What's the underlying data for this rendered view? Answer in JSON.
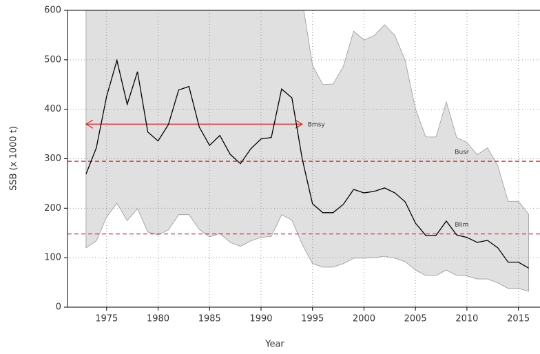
{
  "chart_data": {
    "type": "line",
    "xlabel": "Year",
    "ylabel": "SSB (x 1000 t)",
    "x": [
      1973,
      1974,
      1975,
      1976,
      1977,
      1978,
      1979,
      1980,
      1981,
      1982,
      1983,
      1984,
      1985,
      1986,
      1987,
      1988,
      1989,
      1990,
      1991,
      1992,
      1993,
      1994,
      1995,
      1996,
      1997,
      1998,
      1999,
      2000,
      2001,
      2002,
      2003,
      2004,
      2005,
      2006,
      2007,
      2008,
      2009,
      2010,
      2011,
      2012,
      2013,
      2014,
      2015,
      2016
    ],
    "values": [
      269,
      322,
      426,
      499,
      410,
      476,
      354,
      336,
      369,
      439,
      446,
      364,
      327,
      347,
      309,
      290,
      320,
      340,
      343,
      441,
      423,
      300,
      209,
      191,
      191,
      208,
      238,
      231,
      234,
      241,
      231,
      213,
      170,
      145,
      145,
      174,
      146,
      141,
      131,
      135,
      120,
      91,
      91,
      79
    ],
    "upper": [
      700,
      700,
      700,
      700,
      700,
      700,
      700,
      700,
      700,
      700,
      700,
      700,
      700,
      700,
      700,
      700,
      700,
      700,
      700,
      700,
      700,
      620,
      489,
      450,
      451,
      487,
      558,
      540,
      549,
      571,
      549,
      499,
      401,
      344,
      344,
      415,
      343,
      333,
      308,
      322,
      286,
      214,
      214,
      188
    ],
    "lower": [
      120,
      134,
      182,
      210,
      175,
      199,
      152,
      146,
      156,
      187,
      187,
      157,
      142,
      149,
      131,
      123,
      134,
      141,
      143,
      187,
      176,
      127,
      88,
      81,
      81,
      88,
      99,
      99,
      100,
      103,
      99,
      92,
      75,
      64,
      64,
      75,
      64,
      63,
      57,
      57,
      49,
      38,
      38,
      32
    ],
    "line_color": "#000000",
    "band_color": "#e0e0e0",
    "ref_color": "#e02020",
    "reference_lines": [
      {
        "label": "Busr",
        "value": 295
      },
      {
        "label": "Blim",
        "value": 148
      }
    ],
    "bmsy": {
      "label": "Bmsy",
      "value": 370,
      "x_range": [
        1973,
        1994
      ]
    },
    "xlim": [
      1971.2,
      2017.1
    ],
    "ylim": [
      0,
      600
    ],
    "xticks": [
      1975,
      1980,
      1985,
      1990,
      1995,
      2000,
      2005,
      2010,
      2015
    ],
    "yticks": [
      0,
      100,
      200,
      300,
      400,
      500,
      600
    ],
    "grid": true
  }
}
